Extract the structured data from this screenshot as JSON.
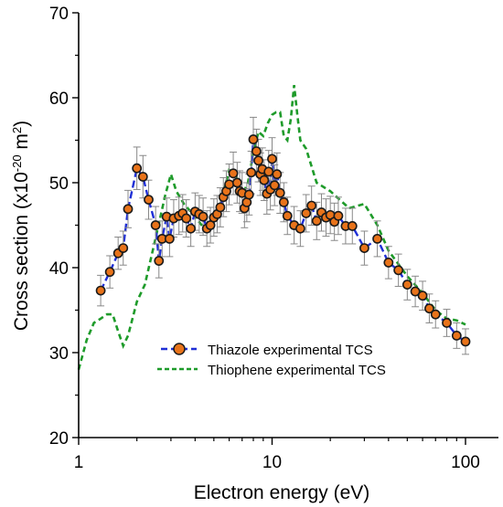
{
  "chart_data": {
    "type": "scatter",
    "xscale": "log",
    "xlim": [
      1,
      150
    ],
    "ylim": [
      20,
      70
    ],
    "xticks": [
      1,
      10,
      100
    ],
    "xtick_labels": [
      "1",
      "10",
      "100"
    ],
    "yticks": [
      20,
      30,
      40,
      50,
      60,
      70
    ],
    "ytick_labels": [
      "20",
      "30",
      "40",
      "50",
      "60",
      "70"
    ],
    "xlabel": "Electron energy (eV)",
    "ylabel_main": "Cross section (x10",
    "ylabel_sup1": "-20",
    "ylabel_mid": " m",
    "ylabel_sup2": "2",
    "ylabel_end": ")",
    "grid": false,
    "legend_position": "lower-center",
    "series": [
      {
        "name": "Thiazole experimental TCS",
        "style": "points-with-errorbars-dashed-line",
        "marker_color": "#e8731a",
        "marker_edge": "#1a1a1a",
        "line_color": "#1f2fd6",
        "errorbar_color": "#888888",
        "x": [
          1.3,
          1.45,
          1.6,
          1.7,
          1.8,
          2.0,
          2.15,
          2.3,
          2.5,
          2.6,
          2.7,
          2.85,
          2.95,
          3.1,
          3.3,
          3.45,
          3.6,
          3.8,
          4.0,
          4.2,
          4.4,
          4.6,
          4.8,
          5.0,
          5.2,
          5.4,
          5.6,
          5.8,
          6.0,
          6.3,
          6.6,
          6.8,
          7.0,
          7.2,
          7.4,
          7.6,
          7.8,
          8.0,
          8.3,
          8.5,
          8.7,
          8.9,
          9.1,
          9.4,
          9.6,
          9.8,
          10.0,
          10.3,
          10.6,
          11.0,
          11.5,
          12.0,
          13.0,
          14.0,
          15.0,
          16.0,
          17.0,
          18.0,
          19.0,
          20.0,
          21.0,
          22.0,
          24.0,
          26.0,
          30.0,
          35.0,
          40.0,
          45.0,
          50.0,
          55.0,
          60.0,
          65.0,
          70.0,
          80.0,
          90.0,
          100.0
        ],
        "y": [
          37.3,
          39.5,
          41.7,
          42.3,
          46.9,
          51.7,
          50.7,
          48.0,
          45.0,
          40.8,
          43.4,
          46.0,
          43.4,
          45.8,
          46.1,
          46.4,
          45.8,
          44.6,
          46.6,
          46.3,
          46.0,
          44.6,
          45.0,
          45.9,
          46.3,
          47.1,
          48.3,
          49.0,
          49.8,
          51.1,
          50.0,
          49.0,
          48.8,
          47.0,
          47.7,
          48.6,
          51.2,
          55.1,
          53.7,
          52.6,
          51.0,
          51.6,
          50.3,
          48.7,
          51.3,
          49.2,
          52.8,
          49.7,
          51.0,
          48.8,
          47.7,
          46.1,
          45.0,
          44.6,
          46.4,
          47.3,
          45.5,
          46.5,
          45.9,
          46.2,
          45.4,
          46.1,
          44.9,
          44.9,
          42.3,
          43.4,
          40.6,
          39.7,
          38.0,
          37.2,
          36.7,
          35.2,
          34.5,
          33.5,
          32.0,
          31.3
        ],
        "err": [
          1.8,
          1.9,
          1.9,
          2.0,
          2.2,
          2.5,
          2.5,
          2.3,
          2.2,
          2.0,
          2.1,
          2.2,
          2.1,
          2.2,
          2.2,
          2.2,
          2.2,
          2.1,
          2.2,
          2.2,
          2.2,
          2.1,
          2.1,
          2.2,
          2.2,
          2.3,
          2.3,
          2.4,
          2.4,
          2.5,
          2.4,
          2.4,
          2.4,
          2.3,
          2.3,
          2.4,
          2.5,
          2.6,
          2.6,
          2.5,
          2.5,
          2.5,
          2.4,
          2.4,
          2.5,
          2.4,
          2.5,
          2.4,
          2.5,
          2.4,
          2.3,
          2.2,
          2.2,
          2.1,
          2.2,
          2.3,
          2.2,
          2.2,
          2.2,
          2.2,
          2.2,
          2.2,
          2.1,
          2.1,
          2.0,
          2.1,
          1.9,
          1.9,
          1.8,
          1.8,
          1.7,
          1.7,
          1.6,
          1.6,
          1.5,
          1.5
        ]
      },
      {
        "name": "Thiophene experimental TCS",
        "style": "dashed-line",
        "line_color": "#1e9b2a",
        "x": [
          1.0,
          1.1,
          1.2,
          1.3,
          1.4,
          1.5,
          1.6,
          1.7,
          1.8,
          2.0,
          2.2,
          2.5,
          2.8,
          3.0,
          3.2,
          3.5,
          4.0,
          4.5,
          5.0,
          5.5,
          6.0,
          6.5,
          7.0,
          7.5,
          8.0,
          8.5,
          9.0,
          9.5,
          10.0,
          10.5,
          11.0,
          11.5,
          12.0,
          12.5,
          13.0,
          13.5,
          14.0,
          15.0,
          17.0,
          20.0,
          25.0,
          30.0,
          35.0,
          40.0,
          50.0,
          60.0,
          70.0,
          80.0,
          90.0,
          100.0
        ],
        "y": [
          28.0,
          31.5,
          33.5,
          34.0,
          34.5,
          34.5,
          32.5,
          30.8,
          32.0,
          36.0,
          38.0,
          43.5,
          48.5,
          51.0,
          49.0,
          47.5,
          46.0,
          44.5,
          45.5,
          48.0,
          51.5,
          51.0,
          48.5,
          50.0,
          53.5,
          56.0,
          55.5,
          57.0,
          58.0,
          58.3,
          58.3,
          55.5,
          55.0,
          57.5,
          61.5,
          58.0,
          55.0,
          54.0,
          50.0,
          49.0,
          47.0,
          47.5,
          45.0,
          42.0,
          39.0,
          37.0,
          35.0,
          34.0,
          33.8,
          33.3
        ]
      }
    ]
  }
}
